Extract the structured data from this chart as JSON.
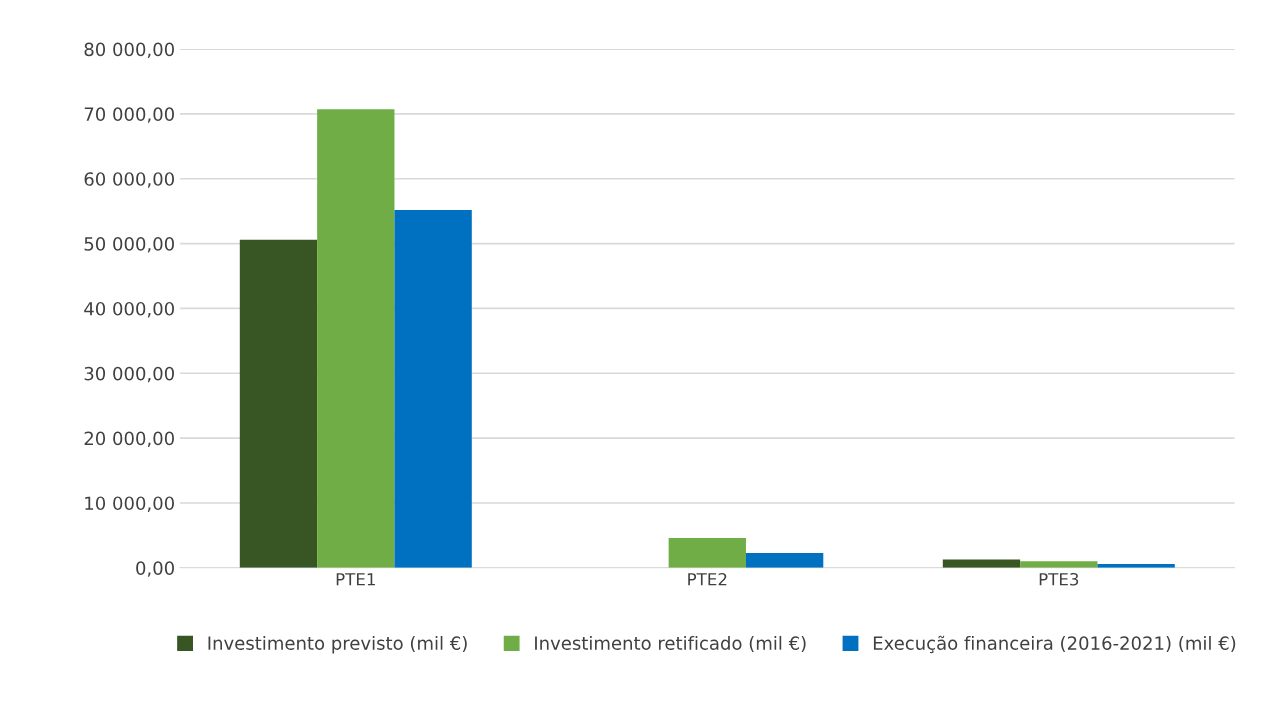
{
  "chart_data": {
    "type": "bar",
    "categories": [
      "PTE1",
      "PTE2",
      "PTE3"
    ],
    "series": [
      {
        "name": "Investimento previsto (mil €)",
        "color": "#375623",
        "values": [
          50600,
          0,
          1300
        ]
      },
      {
        "name": "Investimento retificado (mil €)",
        "color": "#70ad47",
        "values": [
          70700,
          4600,
          1000
        ]
      },
      {
        "name": "Execução financeira (2016-2021) (mil €)",
        "color": "#0070c0",
        "values": [
          55200,
          2300,
          600
        ]
      }
    ],
    "ylim": [
      0,
      80000
    ],
    "yticks": [
      {
        "value": 0,
        "label": "0,00"
      },
      {
        "value": 10000,
        "label": "10 000,00"
      },
      {
        "value": 20000,
        "label": "20 000,00"
      },
      {
        "value": 30000,
        "label": "30 000,00"
      },
      {
        "value": 40000,
        "label": "40 000,00"
      },
      {
        "value": 50000,
        "label": "50 000,00"
      },
      {
        "value": 60000,
        "label": "60 000,00"
      },
      {
        "value": 70000,
        "label": "70 000,00"
      },
      {
        "value": 80000,
        "label": "80 000,00"
      }
    ],
    "grid": "y",
    "legend": "bottom"
  }
}
